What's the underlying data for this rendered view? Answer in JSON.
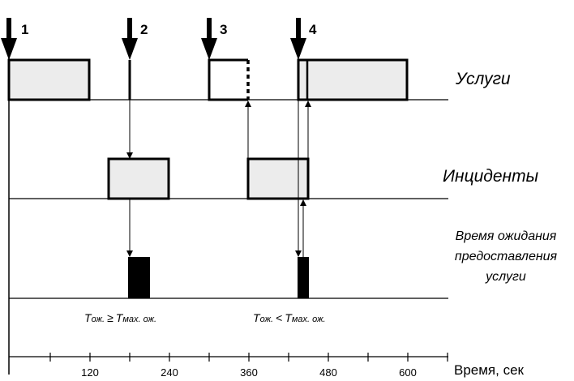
{
  "lanes": {
    "services": "Услуги",
    "incidents": "Инциденты",
    "wait_time": [
      "Время ожидания",
      "предоставления",
      "услуги"
    ]
  },
  "events": [
    "1",
    "2",
    "3",
    "4"
  ],
  "conditions": {
    "left": {
      "t": "T",
      "sub": "ож.",
      "op": "≥",
      "t2": "T",
      "sub2": "мах. ож."
    },
    "right": {
      "t": "T",
      "sub": "ож.",
      "op": "<",
      "t2": "T",
      "sub2": "мах. ож."
    }
  },
  "axis": {
    "title": "Время, сек",
    "tick_labels": [
      "120",
      "240",
      "360",
      "480",
      "600"
    ]
  },
  "colors": {
    "box_fill": "#ececec",
    "stroke": "#000000",
    "wait_bar": "#000000"
  }
}
